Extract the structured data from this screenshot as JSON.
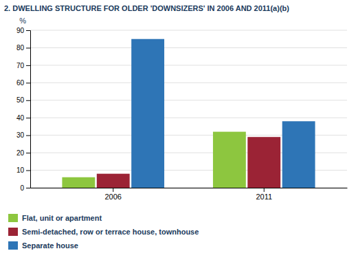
{
  "chart_data": {
    "type": "bar",
    "title": "2. DWELLING STRUCTURE FOR OLDER 'DOWNSIZERS' IN 2006 AND 2011(a)(b)",
    "y_label": "%",
    "categories": [
      "2006",
      "2011"
    ],
    "series": [
      {
        "name": "Flat, unit or apartment",
        "color": "#8DC63F",
        "values": [
          6,
          32
        ]
      },
      {
        "name": "Semi-detached, row or terrace house, townhouse",
        "color": "#9B2335",
        "values": [
          8,
          29
        ]
      },
      {
        "name": "Separate house",
        "color": "#2E75B6",
        "values": [
          85,
          38
        ]
      }
    ],
    "ylim": [
      0,
      90
    ],
    "yticks": [
      0,
      10,
      20,
      30,
      40,
      50,
      60,
      70,
      80,
      90
    ],
    "grid": true,
    "legend": "bottom"
  }
}
